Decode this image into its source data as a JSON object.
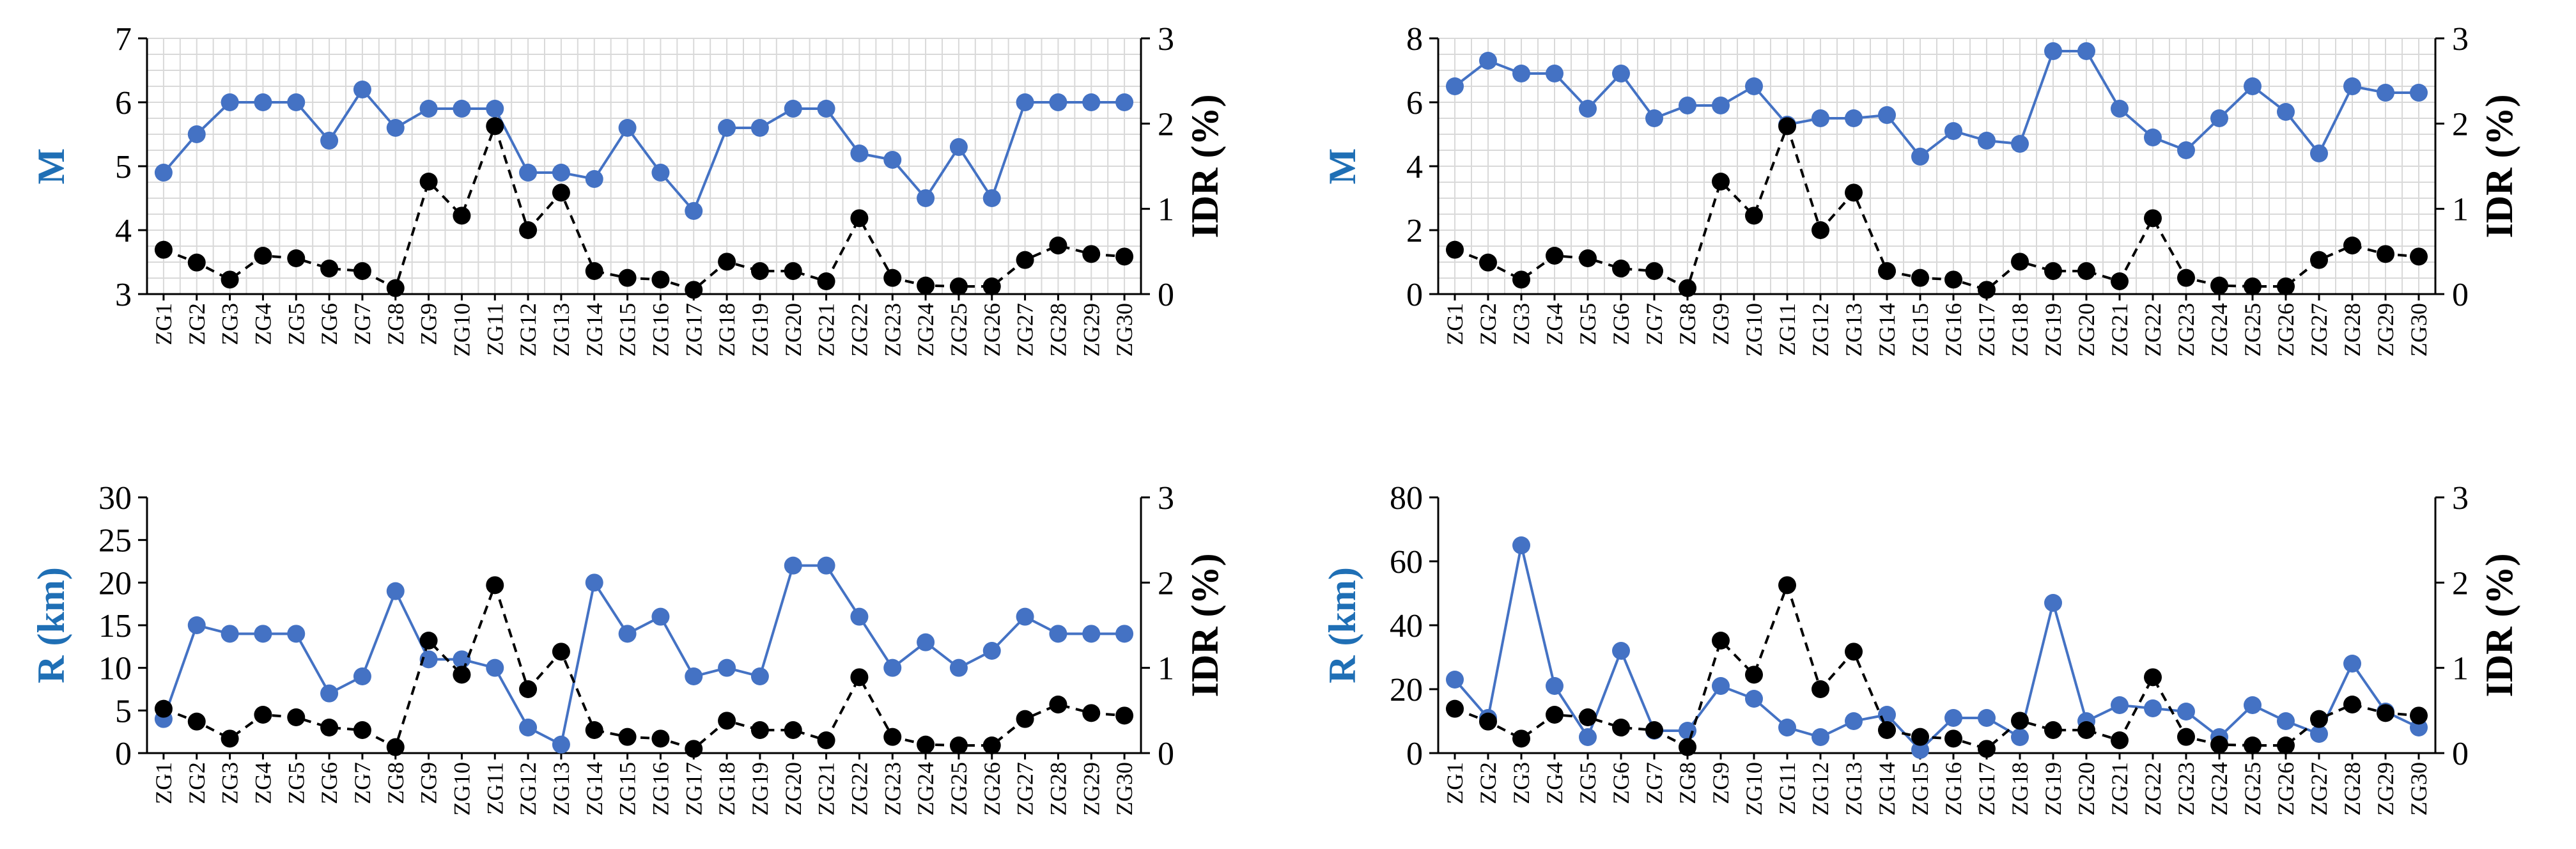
{
  "chart_data": [
    {
      "type": "line",
      "panel": "top-left",
      "categories": [
        "ZG1",
        "ZG2",
        "ZG3",
        "ZG4",
        "ZG5",
        "ZG6",
        "ZG7",
        "ZG8",
        "ZG9",
        "ZG10",
        "ZG11",
        "ZG12",
        "ZG13",
        "ZG14",
        "ZG15",
        "ZG16",
        "ZG17",
        "ZG18",
        "ZG19",
        "ZG20",
        "ZG21",
        "ZG22",
        "ZG23",
        "ZG24",
        "ZG25",
        "ZG26",
        "ZG27",
        "ZG28",
        "ZG29",
        "ZG30"
      ],
      "ylabel": "M",
      "ylabel_color": "#1F6FB5",
      "ylim": [
        3,
        7
      ],
      "yticks": [
        "3",
        "4",
        "5",
        "6",
        "7"
      ],
      "y2label": "IDR (%)",
      "y2lim": [
        0,
        3
      ],
      "y2ticks": [
        "0",
        "1",
        "2",
        "3"
      ],
      "grid": true,
      "series": [
        {
          "name": "M",
          "axis": "left",
          "color": "#4472C4",
          "style": "solid",
          "values": [
            4.9,
            5.5,
            6.0,
            6.0,
            6.0,
            5.4,
            6.2,
            5.6,
            5.9,
            5.9,
            5.9,
            4.9,
            4.9,
            4.8,
            5.6,
            4.9,
            4.3,
            5.6,
            5.6,
            5.9,
            5.9,
            5.2,
            5.1,
            4.5,
            5.3,
            4.5,
            6.0,
            6.0,
            6.0,
            6.0
          ]
        },
        {
          "name": "IDR (%)",
          "axis": "right",
          "color": "#000000",
          "style": "dashed",
          "values": [
            0.52,
            0.37,
            0.17,
            0.45,
            0.42,
            0.3,
            0.27,
            0.07,
            1.32,
            0.92,
            1.97,
            0.75,
            1.19,
            0.27,
            0.19,
            0.17,
            0.05,
            0.38,
            0.27,
            0.27,
            0.15,
            0.89,
            0.19,
            0.1,
            0.09,
            0.09,
            0.4,
            0.57,
            0.47,
            0.44
          ]
        }
      ]
    },
    {
      "type": "line",
      "panel": "top-right",
      "categories": [
        "ZG1",
        "ZG2",
        "ZG3",
        "ZG4",
        "ZG5",
        "ZG6",
        "ZG7",
        "ZG8",
        "ZG9",
        "ZG10",
        "ZG11",
        "ZG12",
        "ZG13",
        "ZG14",
        "ZG15",
        "ZG16",
        "ZG17",
        "ZG18",
        "ZG19",
        "ZG20",
        "ZG21",
        "ZG22",
        "ZG23",
        "ZG24",
        "ZG25",
        "ZG26",
        "ZG27",
        "ZG28",
        "ZG29",
        "ZG30"
      ],
      "ylabel": "M",
      "ylabel_color": "#1F6FB5",
      "ylim": [
        0,
        8
      ],
      "yticks": [
        "0",
        "2",
        "4",
        "6",
        "8"
      ],
      "y2label": "IDR (%)",
      "y2lim": [
        0,
        3
      ],
      "y2ticks": [
        "0",
        "1",
        "2",
        "3"
      ],
      "grid": true,
      "series": [
        {
          "name": "M",
          "axis": "left",
          "color": "#4472C4",
          "style": "solid",
          "values": [
            6.5,
            7.3,
            6.9,
            6.9,
            5.8,
            6.9,
            5.5,
            5.9,
            5.9,
            6.5,
            5.3,
            5.5,
            5.5,
            5.6,
            4.3,
            5.1,
            4.8,
            4.7,
            7.6,
            7.6,
            5.8,
            4.9,
            4.5,
            5.5,
            6.5,
            5.7,
            4.4,
            6.5,
            6.3,
            6.3
          ]
        },
        {
          "name": "IDR (%)",
          "axis": "right",
          "color": "#000000",
          "style": "dashed",
          "values": [
            0.52,
            0.37,
            0.17,
            0.45,
            0.42,
            0.3,
            0.27,
            0.07,
            1.32,
            0.92,
            1.97,
            0.75,
            1.19,
            0.27,
            0.19,
            0.17,
            0.05,
            0.38,
            0.27,
            0.27,
            0.15,
            0.89,
            0.19,
            0.1,
            0.09,
            0.09,
            0.4,
            0.57,
            0.47,
            0.44
          ]
        }
      ]
    },
    {
      "type": "line",
      "panel": "bottom-left",
      "categories": [
        "ZG1",
        "ZG2",
        "ZG3",
        "ZG4",
        "ZG5",
        "ZG6",
        "ZG7",
        "ZG8",
        "ZG9",
        "ZG10",
        "ZG11",
        "ZG12",
        "ZG13",
        "ZG14",
        "ZG15",
        "ZG16",
        "ZG17",
        "ZG18",
        "ZG19",
        "ZG20",
        "ZG21",
        "ZG22",
        "ZG23",
        "ZG24",
        "ZG25",
        "ZG26",
        "ZG27",
        "ZG28",
        "ZG29",
        "ZG30"
      ],
      "ylabel": "R (km)",
      "ylabel_color": "#1F6FB5",
      "ylim": [
        0,
        30
      ],
      "yticks": [
        "0",
        "5",
        "10",
        "15",
        "20",
        "25",
        "30"
      ],
      "y2label": "IDR (%)",
      "y2lim": [
        0,
        3
      ],
      "y2ticks": [
        "0",
        "1",
        "2",
        "3"
      ],
      "grid": false,
      "series": [
        {
          "name": "R (km)",
          "axis": "left",
          "color": "#4472C4",
          "style": "solid",
          "values": [
            4,
            15,
            14,
            14,
            14,
            7,
            9,
            19,
            11,
            11,
            10,
            3,
            1,
            20,
            14,
            16,
            9,
            10,
            9,
            22,
            22,
            16,
            10,
            13,
            10,
            12,
            16,
            14,
            14,
            14
          ]
        },
        {
          "name": "IDR (%)",
          "axis": "right",
          "color": "#000000",
          "style": "dashed",
          "values": [
            0.52,
            0.37,
            0.17,
            0.45,
            0.42,
            0.3,
            0.27,
            0.07,
            1.32,
            0.92,
            1.97,
            0.75,
            1.19,
            0.27,
            0.19,
            0.17,
            0.05,
            0.38,
            0.27,
            0.27,
            0.15,
            0.89,
            0.19,
            0.1,
            0.09,
            0.09,
            0.4,
            0.57,
            0.47,
            0.44
          ]
        }
      ]
    },
    {
      "type": "line",
      "panel": "bottom-right",
      "categories": [
        "ZG1",
        "ZG2",
        "ZG3",
        "ZG4",
        "ZG5",
        "ZG6",
        "ZG7",
        "ZG8",
        "ZG9",
        "ZG10",
        "ZG11",
        "ZG12",
        "ZG13",
        "ZG14",
        "ZG15",
        "ZG16",
        "ZG17",
        "ZG18",
        "ZG19",
        "ZG20",
        "ZG21",
        "ZG22",
        "ZG23",
        "ZG24",
        "ZG25",
        "ZG26",
        "ZG27",
        "ZG28",
        "ZG29",
        "ZG30"
      ],
      "ylabel": "R (km)",
      "ylabel_color": "#1F6FB5",
      "ylim": [
        0,
        80
      ],
      "yticks": [
        "0",
        "20",
        "40",
        "60",
        "80"
      ],
      "y2label": "IDR (%)",
      "y2lim": [
        0,
        3
      ],
      "y2ticks": [
        "0",
        "1",
        "2",
        "3"
      ],
      "grid": false,
      "series": [
        {
          "name": "R (km)",
          "axis": "left",
          "color": "#4472C4",
          "style": "solid",
          "values": [
            23,
            11,
            65,
            21,
            5,
            32,
            7,
            7,
            21,
            17,
            8,
            5,
            10,
            12,
            1,
            11,
            11,
            5,
            47,
            10,
            15,
            14,
            13,
            5,
            15,
            10,
            6,
            28,
            13,
            8
          ]
        },
        {
          "name": "IDR (%)",
          "axis": "right",
          "color": "#000000",
          "style": "dashed",
          "values": [
            0.52,
            0.37,
            0.17,
            0.45,
            0.42,
            0.3,
            0.27,
            0.07,
            1.32,
            0.92,
            1.97,
            0.75,
            1.19,
            0.27,
            0.19,
            0.17,
            0.05,
            0.38,
            0.27,
            0.27,
            0.15,
            0.89,
            0.19,
            0.1,
            0.09,
            0.09,
            0.4,
            0.57,
            0.47,
            0.44
          ]
        }
      ]
    }
  ]
}
